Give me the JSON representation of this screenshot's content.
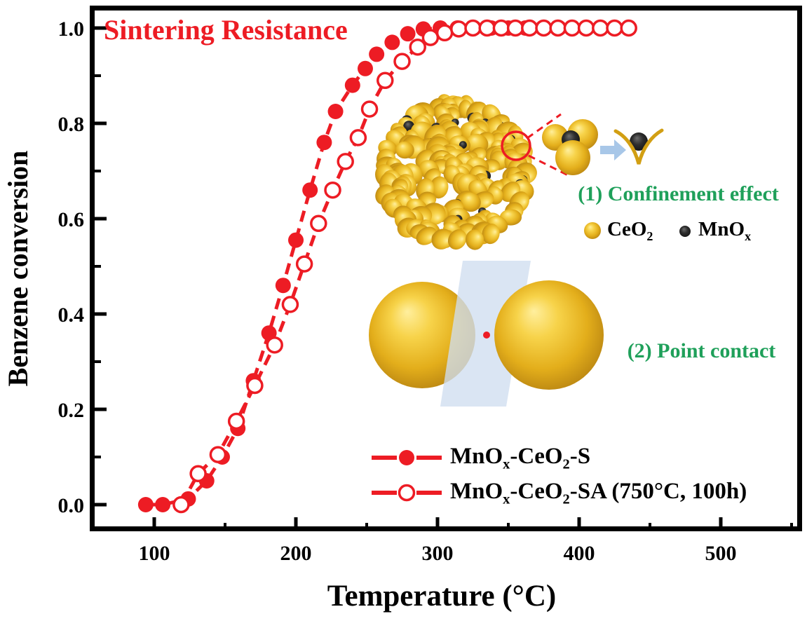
{
  "title": {
    "text": "Sintering Resistance"
  },
  "colors": {
    "red": "#ed1c24",
    "green": "#1fa05a",
    "gold_mid": "#e3ae1b",
    "gold_dark": "#74540a",
    "gold_light": "#ffef9e",
    "particle_black": "#1a1a1a",
    "arrow_blue": "#a8c7e8",
    "plane_blue": "#cfdef0",
    "cradle_gold": "#d29f13",
    "axis_black": "#000000"
  },
  "chart_data": {
    "type": "line",
    "title": "Sintering Resistance",
    "xlabel": "Temperature (°C)",
    "ylabel": "Benzene conversion",
    "xlim": [
      55,
      558
    ],
    "ylim": [
      -0.057,
      1.05
    ],
    "x_major_ticks": [
      100,
      200,
      300,
      400,
      500
    ],
    "x_minor_ticks": [
      150,
      250,
      350,
      450,
      550
    ],
    "y_major_ticks": [
      0.0,
      0.2,
      0.4,
      0.6,
      0.8,
      1.0
    ],
    "y_minor_ticks": [
      0.1,
      0.3,
      0.5,
      0.7,
      0.9
    ],
    "grid": false,
    "legend_position": "inside lower right",
    "series": [
      {
        "name": "MnO{x}-CeO{2}-S",
        "marker": "filled-circle",
        "line": "dashed",
        "color": "#ed1c24",
        "points": [
          [
            94,
            0
          ],
          [
            106,
            0
          ],
          [
            124,
            0.012
          ],
          [
            137,
            0.05
          ],
          [
            148,
            0.1
          ],
          [
            159,
            0.16
          ],
          [
            170,
            0.26
          ],
          [
            181,
            0.36
          ],
          [
            191,
            0.46
          ],
          [
            200,
            0.555
          ],
          [
            210,
            0.66
          ],
          [
            220,
            0.76
          ],
          [
            228,
            0.825
          ],
          [
            240,
            0.88
          ],
          [
            249,
            0.915
          ],
          [
            257,
            0.945
          ],
          [
            268,
            0.97
          ],
          [
            279,
            0.988
          ],
          [
            290,
            0.998
          ],
          [
            302,
            1
          ],
          [
            314,
            1
          ],
          [
            326,
            1
          ],
          [
            338,
            1
          ],
          [
            350,
            1
          ],
          [
            362,
            1
          ],
          [
            374,
            1
          ],
          [
            386,
            1
          ],
          [
            395,
            1
          ]
        ]
      },
      {
        "name": "MnO{x}-CeO{2}-SA (750°C, 100h)",
        "marker": "open-circle",
        "line": "dashed",
        "color": "#ed1c24",
        "points": [
          [
            119,
            0
          ],
          [
            131,
            0.065
          ],
          [
            145,
            0.105
          ],
          [
            158,
            0.175
          ],
          [
            171,
            0.25
          ],
          [
            185,
            0.335
          ],
          [
            196,
            0.42
          ],
          [
            206,
            0.505
          ],
          [
            216,
            0.59
          ],
          [
            226,
            0.66
          ],
          [
            235,
            0.72
          ],
          [
            244,
            0.77
          ],
          [
            252,
            0.83
          ],
          [
            263,
            0.89
          ],
          [
            275,
            0.93
          ],
          [
            286,
            0.96
          ],
          [
            295,
            0.98
          ],
          [
            305,
            0.99
          ],
          [
            315,
            0.998
          ],
          [
            325,
            1
          ],
          [
            335,
            1
          ],
          [
            345,
            1
          ],
          [
            355,
            1
          ],
          [
            365,
            1
          ],
          [
            375,
            1
          ],
          [
            385,
            1
          ],
          [
            395,
            1
          ],
          [
            405,
            1
          ],
          [
            415,
            1
          ],
          [
            425,
            1
          ],
          [
            435,
            1
          ]
        ]
      }
    ]
  },
  "annotations": {
    "confinement": {
      "label": "(1) Confinement effect",
      "legend": [
        {
          "name": "CeO{2}",
          "particle": "gold-sphere"
        },
        {
          "name": "MnO{x}",
          "particle": "black-sphere"
        }
      ]
    },
    "point_contact": {
      "label": "(2) Point contact"
    }
  }
}
